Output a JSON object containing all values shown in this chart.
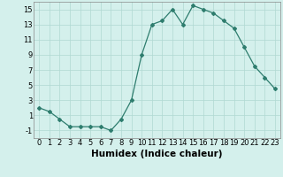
{
  "x": [
    0,
    1,
    2,
    3,
    4,
    5,
    6,
    7,
    8,
    9,
    10,
    11,
    12,
    13,
    14,
    15,
    16,
    17,
    18,
    19,
    20,
    21,
    22,
    23
  ],
  "y": [
    2,
    1.5,
    0.5,
    -0.5,
    -0.5,
    -0.5,
    -0.5,
    -1,
    0.5,
    3,
    9,
    13,
    13.5,
    15,
    13,
    15.5,
    15,
    14.5,
    13.5,
    12.5,
    10,
    7.5,
    6,
    4.5
  ],
  "line_color": "#2e7d6e",
  "marker": "D",
  "marker_size": 2,
  "background_color": "#d4f0ec",
  "grid_color": "#b0d8d2",
  "xlabel": "Humidex (Indice chaleur)",
  "xlim": [
    -0.5,
    23.5
  ],
  "ylim": [
    -2,
    16
  ],
  "yticks": [
    -1,
    1,
    3,
    5,
    7,
    9,
    11,
    13,
    15
  ],
  "xticks": [
    0,
    1,
    2,
    3,
    4,
    5,
    6,
    7,
    8,
    9,
    10,
    11,
    12,
    13,
    14,
    15,
    16,
    17,
    18,
    19,
    20,
    21,
    22,
    23
  ],
  "tick_label_fontsize": 6,
  "xlabel_fontsize": 7.5
}
